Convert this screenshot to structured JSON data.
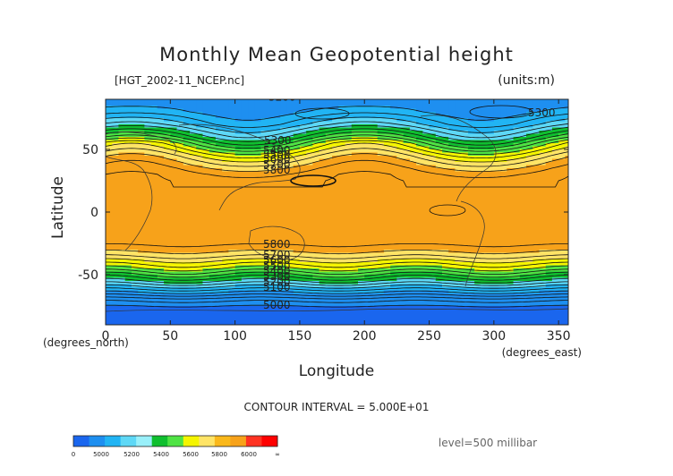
{
  "chart_data": {
    "type": "heatmap",
    "title": "Monthly Mean Geopotential height",
    "file_label": "[HGT_2002-11_NCEP.nc]",
    "units_label": "(units:m)",
    "xlabel": "Longitude",
    "ylabel": "Latitude",
    "x_unit": "(degrees_east)",
    "y_unit": "(degrees_north)",
    "xlim": [
      0,
      357.5
    ],
    "ylim": [
      -90,
      90
    ],
    "x_ticks": [
      0,
      50,
      100,
      150,
      200,
      250,
      300,
      350
    ],
    "y_ticks": [
      50,
      0,
      -50
    ],
    "contour_interval_text": "CONTOUR INTERVAL = 5.000E+01",
    "level_text": "level=500 millibar",
    "contour_labels": [
      "5200",
      "5300",
      "5300",
      "5400",
      "5500",
      "5600",
      "5700",
      "5800",
      "5800",
      "5700",
      "5600",
      "5500",
      "5400",
      "5300",
      "5200",
      "5100",
      "5000"
    ],
    "colorbar": {
      "tick_labels": [
        "0",
        "5000",
        "5200",
        "5400",
        "5600",
        "5800",
        "6000",
        "∞"
      ],
      "colors": [
        "#1a66ee",
        "#1e8ff0",
        "#21b4f4",
        "#5ed8f6",
        "#99f0fa",
        "#0fbf2f",
        "#4fe344",
        "#f5f500",
        "#ffe466",
        "#fab81a",
        "#f7a21a",
        "#ff3322",
        "#ff0000"
      ]
    },
    "profile_lats": [
      90,
      80,
      70,
      60,
      55,
      50,
      45,
      40,
      35,
      30,
      25,
      20,
      0,
      -20,
      -25,
      -30,
      -35,
      -40,
      -45,
      -50,
      -55,
      -60,
      -65,
      -70,
      -75,
      -80,
      -90
    ],
    "profile_heights": [
      5150,
      5200,
      5300,
      5460,
      5560,
      5640,
      5720,
      5780,
      5830,
      5870,
      5890,
      5900,
      5890,
      5880,
      5860,
      5820,
      5760,
      5680,
      5600,
      5500,
      5400,
      5290,
      5180,
      5070,
      5000,
      4960,
      4950
    ]
  }
}
